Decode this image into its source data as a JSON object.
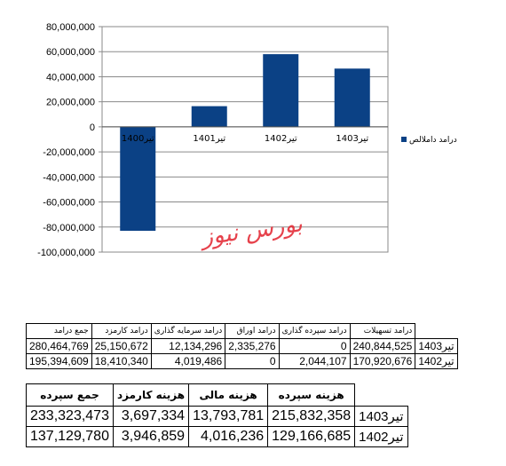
{
  "chart_data": {
    "type": "bar",
    "categories": [
      "تیر1400",
      "تیر1401",
      "تیر1402",
      "تیر1403"
    ],
    "series": [
      {
        "name": "درامد داملالص",
        "values": [
          -83000000,
          16500000,
          58000000,
          46500000
        ],
        "color": "#0b4185"
      }
    ],
    "ylim": [
      -100000000,
      80000000
    ],
    "yticks": [
      80000000,
      60000000,
      40000000,
      20000000,
      0,
      -20000000,
      -40000000,
      -60000000,
      -80000000,
      -100000000
    ],
    "ytick_labels": [
      "80,000,000",
      "60,000,000",
      "40,000,000",
      "20,000,000",
      "0",
      "-20,000,000",
      "-40,000,000",
      "-60,000,000",
      "-80,000,000",
      "-100,000,000"
    ],
    "grid": true,
    "legend": "right",
    "xlabel": "",
    "ylabel": ""
  },
  "watermark_text": "بورس نیوز",
  "table1": {
    "headers": [
      "جمع درامد",
      "درامد کارمزد",
      "درامد سرمایه گذاری",
      "درامد اوراق",
      "درامد سپرده گذاری",
      "درامد تسهیلات"
    ],
    "rows": [
      {
        "label": "تیر1403",
        "cells": [
          "280,464,769",
          "25,150,672",
          "12,134,296",
          "2,335,276",
          "0",
          "240,844,525"
        ]
      },
      {
        "label": "تیر1402",
        "cells": [
          "195,394,609",
          "18,410,340",
          "4,019,486",
          "0",
          "2,044,107",
          "170,920,676"
        ]
      }
    ]
  },
  "table2": {
    "headers": [
      "جمع سپرده",
      "هزینه کارمزد",
      "هزینه مالی",
      "هزینه سپرده"
    ],
    "rows": [
      {
        "label": "تیر1403",
        "cells": [
          "233,323,473",
          "3,697,334",
          "13,793,781",
          "215,832,358"
        ]
      },
      {
        "label": "تیر1402",
        "cells": [
          "137,129,780",
          "3,946,859",
          "4,016,236",
          "129,166,685"
        ]
      }
    ]
  }
}
